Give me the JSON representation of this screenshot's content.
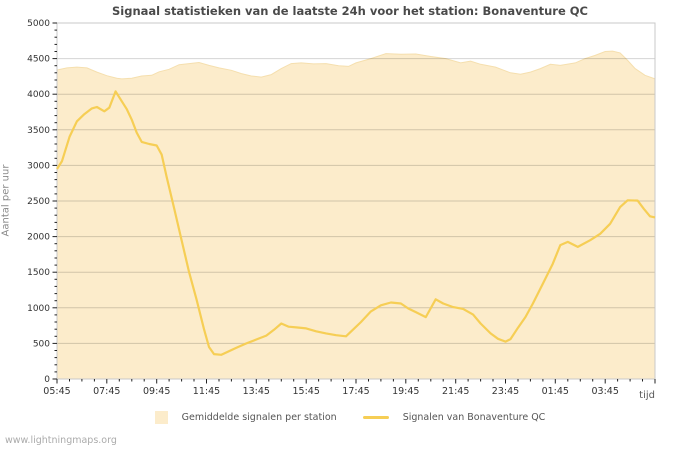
{
  "chart_data": {
    "type": "area+line",
    "title": "Signaal statistieken van de laatste 24h voor het station: Bonaventure QC",
    "ylabel": "Aantal per uur",
    "xlabel": "tijd",
    "ylim": [
      0,
      5000
    ],
    "y_ticks": [
      0,
      500,
      1000,
      1500,
      2000,
      2500,
      3000,
      3500,
      4000,
      4500,
      5000
    ],
    "y_minor_step": 100,
    "x_hours_total": 24,
    "x_minor_step_hours": 0.5,
    "x_major_step_hours": 2,
    "x_ticks": [
      {
        "h": 0,
        "label": "05:45"
      },
      {
        "h": 2,
        "label": "07:45"
      },
      {
        "h": 4,
        "label": "09:45"
      },
      {
        "h": 6,
        "label": "11:45"
      },
      {
        "h": 8,
        "label": "13:45"
      },
      {
        "h": 10,
        "label": "15:45"
      },
      {
        "h": 12,
        "label": "17:45"
      },
      {
        "h": 14,
        "label": "19:45"
      },
      {
        "h": 16,
        "label": "21:45"
      },
      {
        "h": 18,
        "label": "23:45"
      },
      {
        "h": 20,
        "label": "01:45"
      },
      {
        "h": 22,
        "label": "03:45"
      }
    ],
    "grid": "horizontal-only",
    "legend_position": "bottom-center",
    "series": [
      {
        "name": "Gemiddelde signalen per station",
        "type": "area",
        "fill": "#fceccb",
        "edge": "#f5dfae",
        "points": [
          [
            0,
            4340
          ],
          [
            0.4,
            4370
          ],
          [
            0.8,
            4380
          ],
          [
            1.2,
            4370
          ],
          [
            1.6,
            4310
          ],
          [
            2.0,
            4260
          ],
          [
            2.4,
            4225
          ],
          [
            2.6,
            4215
          ],
          [
            3.0,
            4225
          ],
          [
            3.4,
            4255
          ],
          [
            3.8,
            4265
          ],
          [
            4.1,
            4315
          ],
          [
            4.5,
            4350
          ],
          [
            4.9,
            4415
          ],
          [
            5.3,
            4430
          ],
          [
            5.7,
            4445
          ],
          [
            6.1,
            4405
          ],
          [
            6.5,
            4370
          ],
          [
            7.0,
            4335
          ],
          [
            7.4,
            4290
          ],
          [
            7.8,
            4255
          ],
          [
            8.2,
            4240
          ],
          [
            8.6,
            4275
          ],
          [
            9.0,
            4360
          ],
          [
            9.4,
            4430
          ],
          [
            9.8,
            4440
          ],
          [
            10.3,
            4425
          ],
          [
            10.8,
            4430
          ],
          [
            11.3,
            4400
          ],
          [
            11.7,
            4390
          ],
          [
            12.0,
            4440
          ],
          [
            12.6,
            4500
          ],
          [
            13.2,
            4570
          ],
          [
            13.8,
            4560
          ],
          [
            14.4,
            4565
          ],
          [
            15.0,
            4530
          ],
          [
            15.6,
            4500
          ],
          [
            16.2,
            4440
          ],
          [
            16.6,
            4465
          ],
          [
            17.0,
            4420
          ],
          [
            17.6,
            4380
          ],
          [
            18.2,
            4300
          ],
          [
            18.6,
            4280
          ],
          [
            19.0,
            4310
          ],
          [
            19.4,
            4360
          ],
          [
            19.8,
            4420
          ],
          [
            20.2,
            4405
          ],
          [
            20.8,
            4440
          ],
          [
            21.2,
            4500
          ],
          [
            21.6,
            4545
          ],
          [
            22.0,
            4600
          ],
          [
            22.3,
            4605
          ],
          [
            22.6,
            4580
          ],
          [
            22.9,
            4475
          ],
          [
            23.2,
            4360
          ],
          [
            23.6,
            4265
          ],
          [
            24,
            4215
          ]
        ]
      },
      {
        "name": "Signalen van Bonaventure QC",
        "type": "line",
        "color": "#f6ce55",
        "points": [
          [
            0,
            2950
          ],
          [
            0.2,
            3060
          ],
          [
            0.5,
            3400
          ],
          [
            0.8,
            3620
          ],
          [
            1.1,
            3720
          ],
          [
            1.4,
            3800
          ],
          [
            1.6,
            3820
          ],
          [
            1.9,
            3760
          ],
          [
            2.1,
            3810
          ],
          [
            2.35,
            4040
          ],
          [
            2.6,
            3900
          ],
          [
            2.8,
            3790
          ],
          [
            3.0,
            3640
          ],
          [
            3.2,
            3460
          ],
          [
            3.4,
            3330
          ],
          [
            3.7,
            3300
          ],
          [
            4.0,
            3280
          ],
          [
            4.2,
            3150
          ],
          [
            4.4,
            2840
          ],
          [
            4.7,
            2400
          ],
          [
            5.0,
            1950
          ],
          [
            5.3,
            1500
          ],
          [
            5.6,
            1120
          ],
          [
            5.9,
            700
          ],
          [
            6.1,
            450
          ],
          [
            6.3,
            350
          ],
          [
            6.6,
            340
          ],
          [
            6.9,
            390
          ],
          [
            7.2,
            440
          ],
          [
            7.6,
            500
          ],
          [
            8.0,
            555
          ],
          [
            8.4,
            610
          ],
          [
            8.7,
            690
          ],
          [
            9.0,
            780
          ],
          [
            9.3,
            735
          ],
          [
            9.6,
            725
          ],
          [
            10.0,
            710
          ],
          [
            10.4,
            670
          ],
          [
            10.8,
            640
          ],
          [
            11.2,
            615
          ],
          [
            11.6,
            600
          ],
          [
            11.9,
            700
          ],
          [
            12.2,
            800
          ],
          [
            12.6,
            950
          ],
          [
            13.0,
            1035
          ],
          [
            13.4,
            1075
          ],
          [
            13.8,
            1060
          ],
          [
            14.1,
            990
          ],
          [
            14.4,
            940
          ],
          [
            14.8,
            870
          ],
          [
            15.2,
            1120
          ],
          [
            15.5,
            1060
          ],
          [
            15.9,
            1010
          ],
          [
            16.3,
            985
          ],
          [
            16.7,
            905
          ],
          [
            17.0,
            780
          ],
          [
            17.4,
            640
          ],
          [
            17.7,
            565
          ],
          [
            18.0,
            525
          ],
          [
            18.2,
            560
          ],
          [
            18.5,
            720
          ],
          [
            18.8,
            870
          ],
          [
            19.1,
            1060
          ],
          [
            19.5,
            1340
          ],
          [
            19.9,
            1620
          ],
          [
            20.2,
            1880
          ],
          [
            20.5,
            1925
          ],
          [
            20.9,
            1855
          ],
          [
            21.4,
            1950
          ],
          [
            21.8,
            2040
          ],
          [
            22.2,
            2180
          ],
          [
            22.6,
            2415
          ],
          [
            22.9,
            2510
          ],
          [
            23.3,
            2505
          ],
          [
            23.55,
            2390
          ],
          [
            23.8,
            2285
          ],
          [
            24,
            2270
          ]
        ]
      }
    ]
  },
  "watermark": "www.lightningmaps.org",
  "colors": {
    "background": "#ffffff",
    "plot_border": "#c8c8c8",
    "grid": "rgba(0,0,0,0.17)",
    "tick": "#222222",
    "axis_text": "#333333",
    "title_text": "#4a4a4a",
    "ylabel_text": "#8a8a8a",
    "legend_text": "#555555",
    "watermark_text": "#ababab"
  }
}
